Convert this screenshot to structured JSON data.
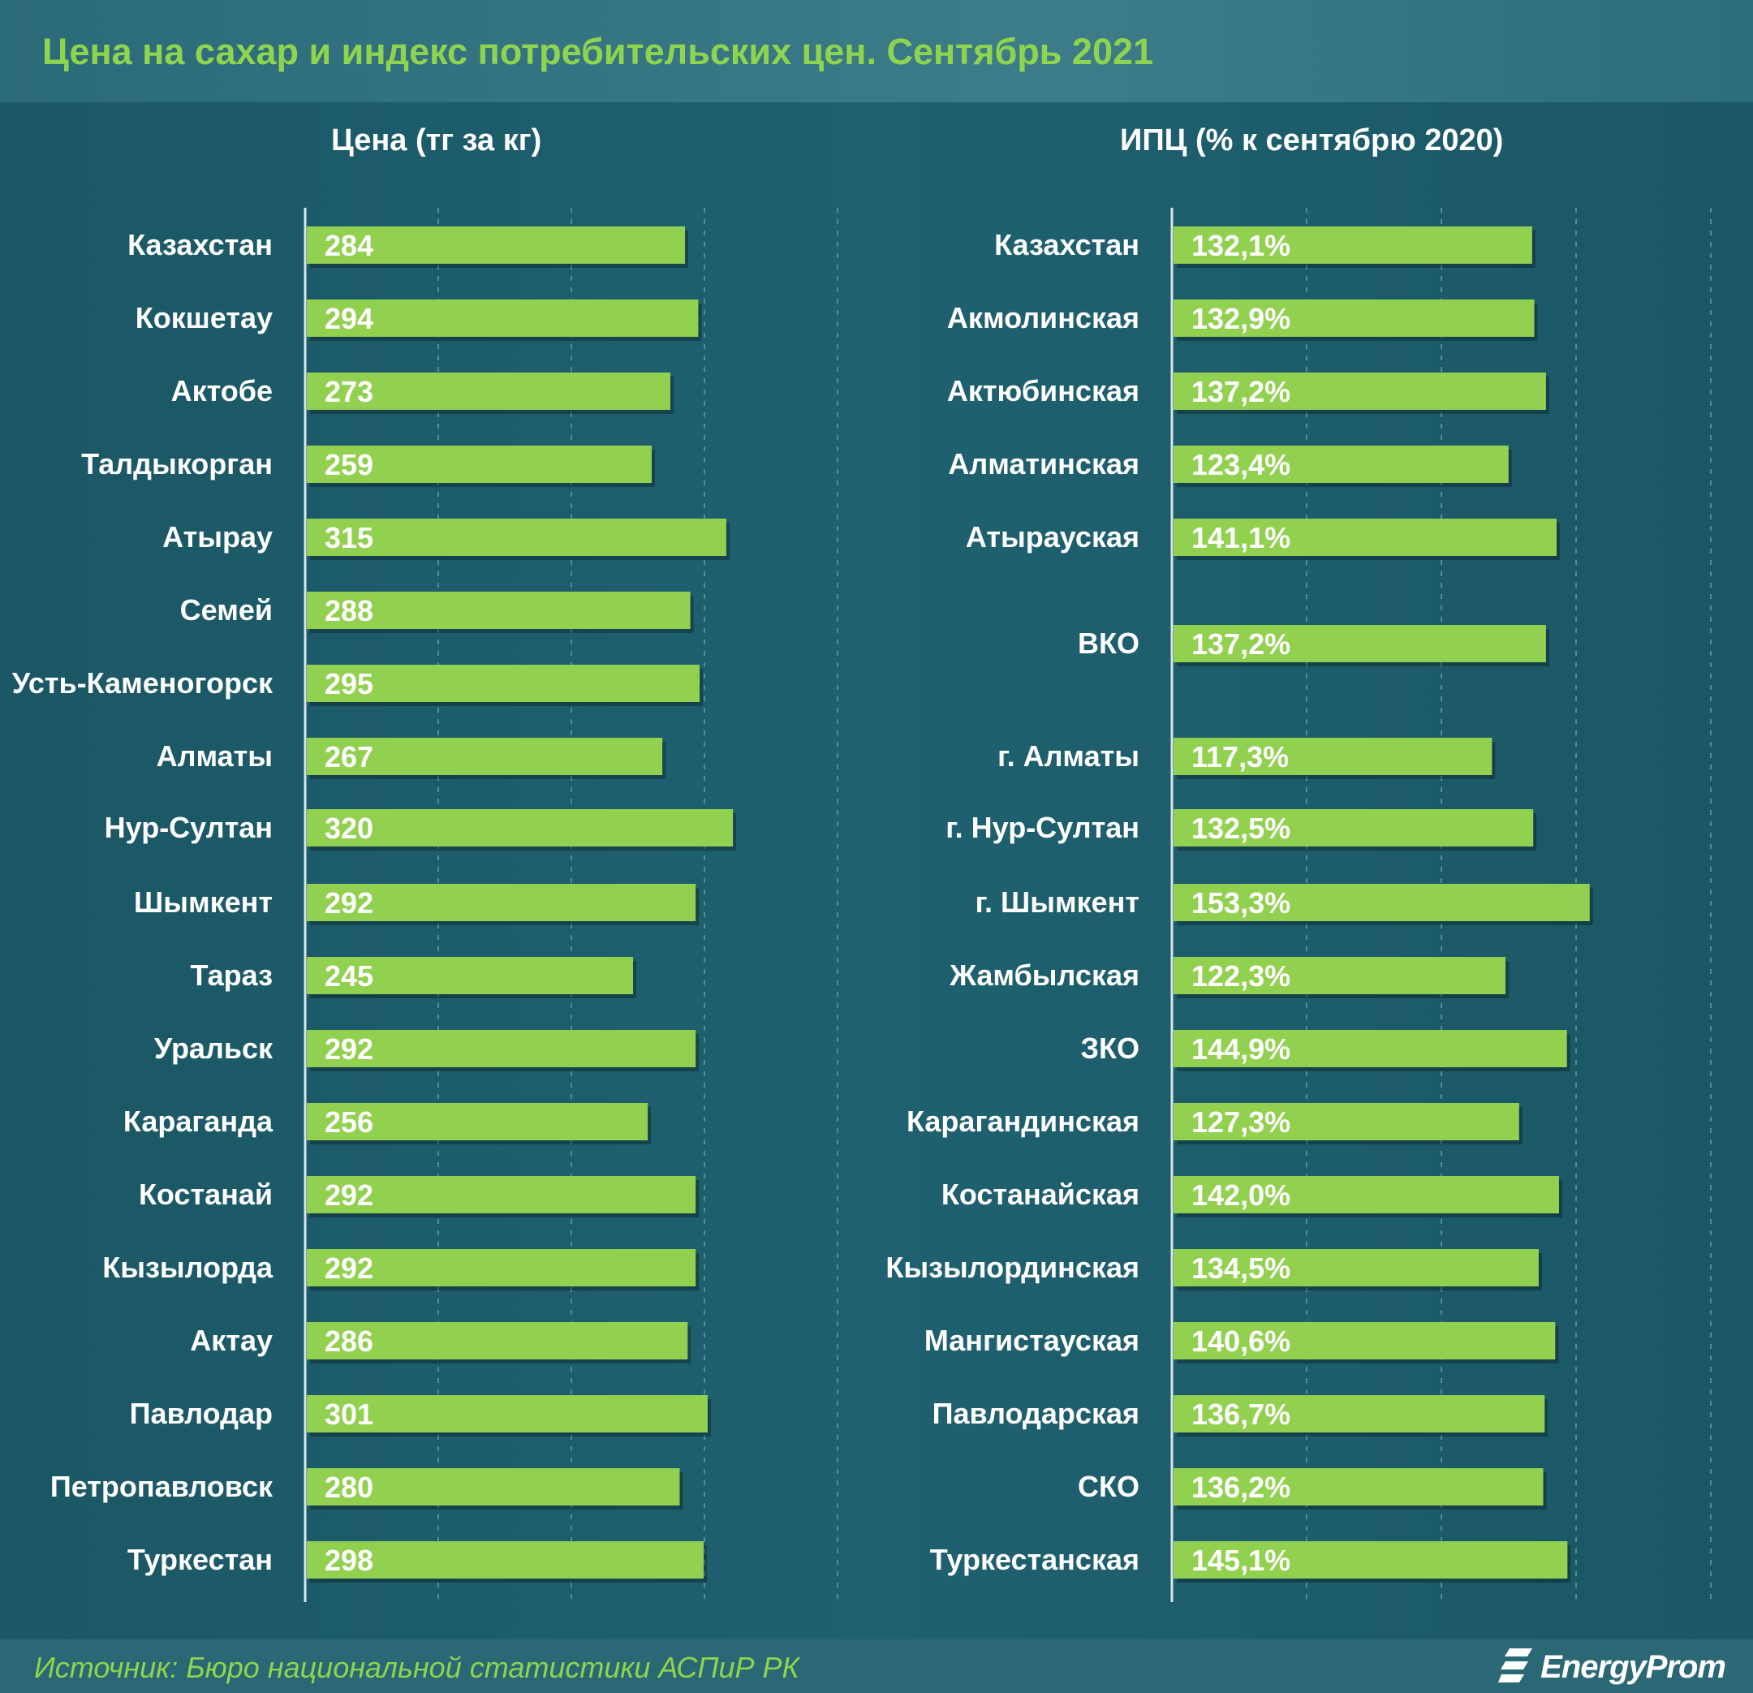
{
  "header": {
    "title": "Цена на сахар и индекс потребительских цен. Сентябрь 2021"
  },
  "footer": {
    "source": "Источник: Бюро национальной статистики АСПиР РК",
    "logo_text": "EnergyProm"
  },
  "colors": {
    "background": "#1d5c6b",
    "bar": "#92d050",
    "title": "#8fd44f",
    "text": "#ffffff"
  },
  "chart_data": [
    {
      "type": "bar",
      "orientation": "horizontal",
      "title": "Цена (тг за кг)",
      "xlim": [
        0,
        400
      ],
      "grid": true,
      "categories": [
        "Казахстан",
        "Кокшетау",
        "Актобе",
        "Талдыкорган",
        "Атырау",
        "Семей",
        "Усть-Каменогорск",
        "Алматы",
        "Нур-Султан",
        "Шымкент",
        "Тараз",
        "Уральск",
        "Караганда",
        "Костанай",
        "Кызылорда",
        "Актау",
        "Павлодар",
        "Петропавловск",
        "Туркестан"
      ],
      "values": [
        284,
        294,
        273,
        259,
        315,
        288,
        295,
        267,
        320,
        292,
        245,
        292,
        256,
        292,
        292,
        286,
        301,
        280,
        298
      ],
      "labels": [
        "284",
        "294",
        "273",
        "259",
        "315",
        "288",
        "295",
        "267",
        "320",
        "292",
        "245",
        "292",
        "256",
        "292",
        "292",
        "286",
        "301",
        "280",
        "298"
      ]
    },
    {
      "type": "bar",
      "orientation": "horizontal",
      "title": "ИПЦ (% к сентябрю 2020)",
      "xlim": [
        0,
        200
      ],
      "grid": true,
      "categories": [
        "Казахстан",
        "Акмолинская",
        "Актюбинская",
        "Алматинская",
        "Атырауская",
        "ВКО",
        "г. Алматы",
        "г. Нур-Султан",
        "г. Шымкент",
        "Жамбылская",
        "ЗКО",
        "Карагандинская",
        "Костанайская",
        "Кызылординская",
        "Мангистауская",
        "Павлодарская",
        "СКО",
        "Туркестанская"
      ],
      "values": [
        132.1,
        132.9,
        137.2,
        123.4,
        141.1,
        137.2,
        117.3,
        132.5,
        153.3,
        122.3,
        144.9,
        127.3,
        142.0,
        134.5,
        140.6,
        136.7,
        136.2,
        145.1
      ],
      "labels": [
        "132,1%",
        "132,9%",
        "137,2%",
        "123,4%",
        "141,1%",
        "137,2%",
        "117,3%",
        "132,5%",
        "153,3%",
        "122,3%",
        "144,9%",
        "127,3%",
        "142,0%",
        "134,5%",
        "140,6%",
        "136,7%",
        "136,2%",
        "145,1%"
      ]
    }
  ]
}
